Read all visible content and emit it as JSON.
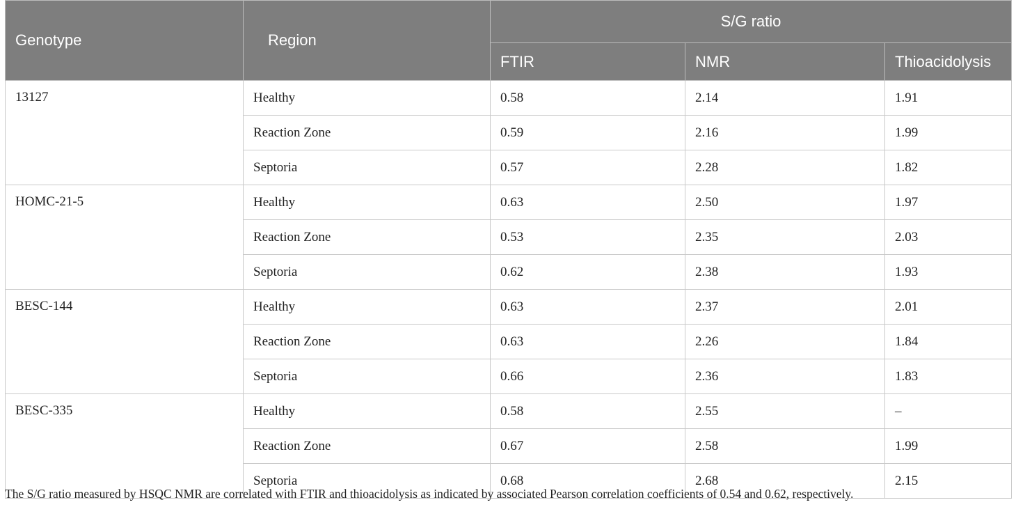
{
  "headers": {
    "genotype": "Genotype",
    "region": "Region",
    "sg_ratio": "S/G ratio",
    "ftir": "FTIR",
    "nmr": "NMR",
    "thio": "Thioacidolysis"
  },
  "groups": [
    {
      "genotype": "13127",
      "rows": [
        {
          "region": "Healthy",
          "ftir": "0.58",
          "nmr": "2.14",
          "thio": "1.91"
        },
        {
          "region": "Reaction Zone",
          "ftir": "0.59",
          "nmr": "2.16",
          "thio": "1.99"
        },
        {
          "region": "Septoria",
          "ftir": "0.57",
          "nmr": "2.28",
          "thio": "1.82"
        }
      ]
    },
    {
      "genotype": "HOMC-21-5",
      "rows": [
        {
          "region": "Healthy",
          "ftir": "0.63",
          "nmr": "2.50",
          "thio": "1.97"
        },
        {
          "region": "Reaction Zone",
          "ftir": "0.53",
          "nmr": "2.35",
          "thio": "2.03"
        },
        {
          "region": "Septoria",
          "ftir": "0.62",
          "nmr": "2.38",
          "thio": "1.93"
        }
      ]
    },
    {
      "genotype": "BESC-144",
      "rows": [
        {
          "region": "Healthy",
          "ftir": "0.63",
          "nmr": "2.37",
          "thio": "2.01"
        },
        {
          "region": "Reaction Zone",
          "ftir": "0.63",
          "nmr": "2.26",
          "thio": "1.84"
        },
        {
          "region": "Septoria",
          "ftir": "0.66",
          "nmr": "2.36",
          "thio": "1.83"
        }
      ]
    },
    {
      "genotype": "BESC-335",
      "rows": [
        {
          "region": "Healthy",
          "ftir": "0.58",
          "nmr": "2.55",
          "thio": "–"
        },
        {
          "region": "Reaction Zone",
          "ftir": "0.67",
          "nmr": "2.58",
          "thio": "1.99"
        },
        {
          "region": "Septoria",
          "ftir": "0.68",
          "nmr": "2.68",
          "thio": "2.15"
        }
      ]
    }
  ],
  "footnote": "The S/G ratio measured by HSQC NMR are correlated with FTIR and thioacidolysis as indicated by associated Pearson correlation coefficients of 0.54 and 0.62, respectively."
}
